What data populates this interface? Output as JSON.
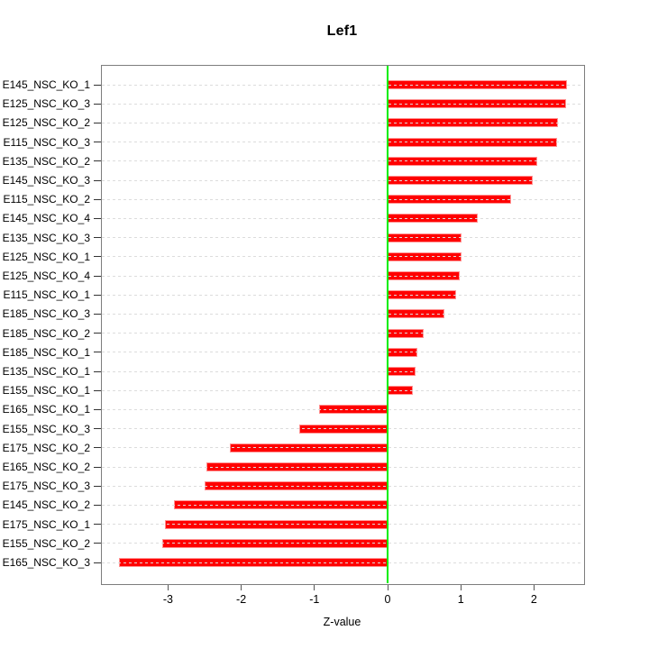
{
  "title": "Lef1",
  "xlabel": "Z-value",
  "chart_data": {
    "type": "bar",
    "orientation": "horizontal",
    "title": "Lef1",
    "xlabel": "Z-value",
    "ylabel": "",
    "categories": [
      "E145_NSC_KO_1",
      "E125_NSC_KO_3",
      "E125_NSC_KO_2",
      "E115_NSC_KO_3",
      "E135_NSC_KO_2",
      "E145_NSC_KO_3",
      "E115_NSC_KO_2",
      "E145_NSC_KO_4",
      "E135_NSC_KO_3",
      "E125_NSC_KO_1",
      "E125_NSC_KO_4",
      "E115_NSC_KO_1",
      "E185_NSC_KO_3",
      "E185_NSC_KO_2",
      "E185_NSC_KO_1",
      "E135_NSC_KO_1",
      "E155_NSC_KO_1",
      "E165_NSC_KO_1",
      "E155_NSC_KO_3",
      "E175_NSC_KO_2",
      "E165_NSC_KO_2",
      "E175_NSC_KO_3",
      "E145_NSC_KO_2",
      "E175_NSC_KO_1",
      "E155_NSC_KO_2",
      "E165_NSC_KO_3"
    ],
    "values": [
      2.45,
      2.44,
      2.33,
      2.31,
      2.04,
      1.98,
      1.69,
      1.23,
      1.01,
      1.01,
      0.98,
      0.94,
      0.77,
      0.49,
      0.41,
      0.38,
      0.34,
      -0.94,
      -1.21,
      -2.16,
      -2.48,
      -2.5,
      -2.92,
      -3.04,
      -3.08,
      -3.67
    ],
    "xticks": [
      -3,
      -2,
      -1,
      0,
      1,
      2
    ],
    "xlim": [
      -3.92,
      2.67
    ],
    "grid": true,
    "legend": "none",
    "bar_color": "#ff0000",
    "bar_border_color": "#ff9090",
    "zero_line_color": "#00ee00",
    "grid_color": "#dcdcdc",
    "axis_color": "#7d7d7d",
    "text_color": "#000000"
  }
}
